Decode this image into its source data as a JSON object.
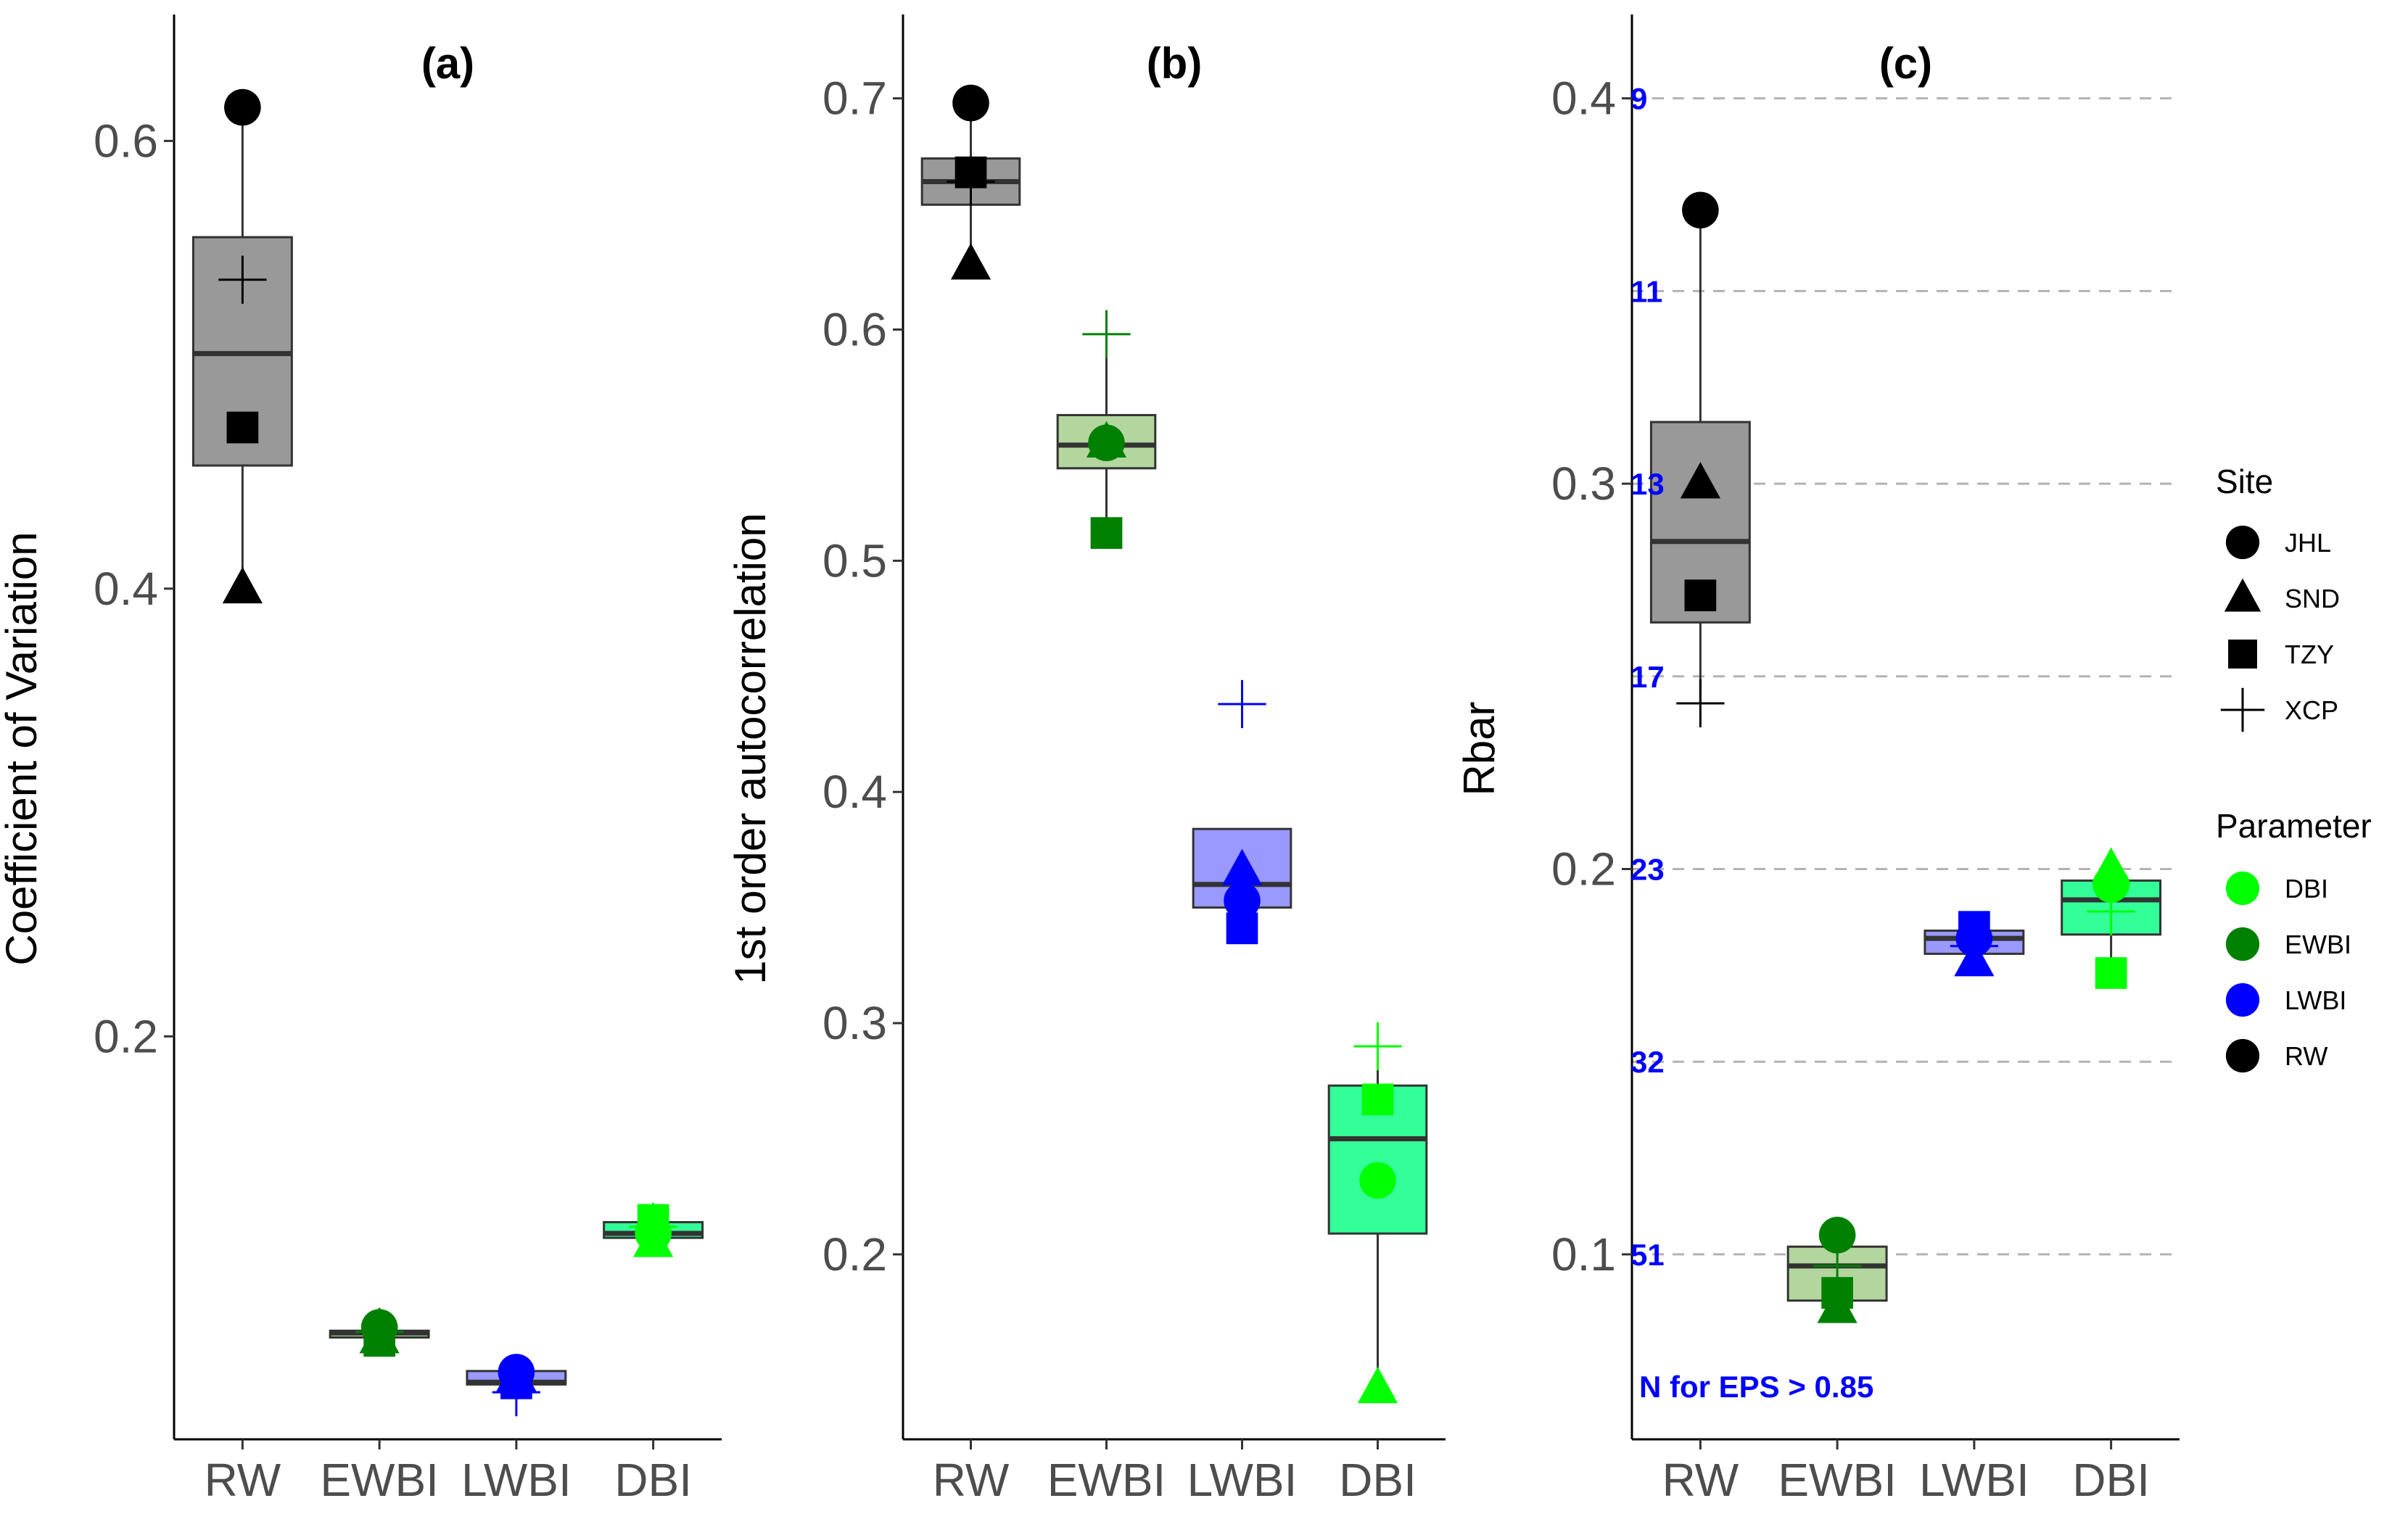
{
  "chart_data": [
    {
      "id": "a",
      "type": "box",
      "title": "(a)",
      "ylabel": "Coefficient of Variation",
      "xlabel": "",
      "ylim": [
        0.02,
        0.65
      ],
      "yticks": [
        0.2,
        0.4,
        0.6
      ],
      "ytick_labels": [
        "0.2",
        "0.4",
        "0.6"
      ],
      "categories": [
        "RW",
        "EWBI",
        "LWBI",
        "DBI"
      ],
      "boxes": [
        {
          "name": "RW",
          "fill": "#999999",
          "lower": 0.4,
          "q1": 0.455,
          "median": 0.505,
          "q3": 0.557,
          "upper": 0.615
        },
        {
          "name": "EWBI",
          "fill": "#b2d69e",
          "lower": 0.063,
          "q1": 0.0655,
          "median": 0.0675,
          "q3": 0.0685,
          "upper": 0.07
        },
        {
          "name": "LWBI",
          "fill": "#9999ff",
          "lower": 0.041,
          "q1": 0.0445,
          "median": 0.0455,
          "q3": 0.0505,
          "upper": 0.053
        },
        {
          "name": "DBI",
          "fill": "#33ff99",
          "lower": 0.108,
          "q1": 0.11,
          "median": 0.112,
          "q3": 0.117,
          "upper": 0.118
        }
      ],
      "points": [
        {
          "category": "RW",
          "site": "JHL",
          "value": 0.615
        },
        {
          "category": "RW",
          "site": "SND",
          "value": 0.4
        },
        {
          "category": "RW",
          "site": "TZY",
          "value": 0.472
        },
        {
          "category": "RW",
          "site": "XCP",
          "value": 0.538
        },
        {
          "category": "EWBI",
          "site": "JHL",
          "value": 0.07
        },
        {
          "category": "EWBI",
          "site": "SND",
          "value": 0.065
        },
        {
          "category": "EWBI",
          "site": "TZY",
          "value": 0.064
        },
        {
          "category": "EWBI",
          "site": "XCP",
          "value": 0.068
        },
        {
          "category": "LWBI",
          "site": "JHL",
          "value": 0.05
        },
        {
          "category": "LWBI",
          "site": "SND",
          "value": 0.048
        },
        {
          "category": "LWBI",
          "site": "TZY",
          "value": 0.045
        },
        {
          "category": "LWBI",
          "site": "XCP",
          "value": 0.041
        },
        {
          "category": "DBI",
          "site": "JHL",
          "value": 0.112
        },
        {
          "category": "DBI",
          "site": "SND",
          "value": 0.108
        },
        {
          "category": "DBI",
          "site": "TZY",
          "value": 0.118
        },
        {
          "category": "DBI",
          "site": "XCP",
          "value": 0.115
        }
      ]
    },
    {
      "id": "b",
      "type": "box",
      "title": "(b)",
      "ylabel": "1st order autocorrelation",
      "xlabel": "",
      "ylim": [
        0.12,
        0.73
      ],
      "yticks": [
        0.2,
        0.3,
        0.4,
        0.5,
        0.6,
        0.7
      ],
      "ytick_labels": [
        "0.2",
        "0.3",
        "0.4",
        "0.5",
        "0.6",
        "0.7"
      ],
      "categories": [
        "RW",
        "EWBI",
        "LWBI",
        "DBI"
      ],
      "boxes": [
        {
          "name": "RW",
          "fill": "#999999",
          "lower": 0.628,
          "q1": 0.654,
          "median": 0.664,
          "q3": 0.674,
          "upper": 0.698
        },
        {
          "name": "EWBI",
          "fill": "#b2d69e",
          "lower": 0.512,
          "q1": 0.54,
          "median": 0.55,
          "q3": 0.563,
          "upper": 0.598
        },
        {
          "name": "LWBI",
          "fill": "#9999ff",
          "lower": 0.35,
          "q1": 0.35,
          "median": 0.36,
          "q3": 0.384,
          "upper": 0.384
        },
        {
          "name": "DBI",
          "fill": "#33ff99",
          "lower": 0.142,
          "q1": 0.209,
          "median": 0.25,
          "q3": 0.273,
          "upper": 0.29
        }
      ],
      "points": [
        {
          "category": "RW",
          "site": "JHL",
          "value": 0.698
        },
        {
          "category": "RW",
          "site": "SND",
          "value": 0.628
        },
        {
          "category": "RW",
          "site": "TZY",
          "value": 0.668
        },
        {
          "category": "RW",
          "site": "XCP",
          "value": 0.664
        },
        {
          "category": "EWBI",
          "site": "JHL",
          "value": 0.551
        },
        {
          "category": "EWBI",
          "site": "SND",
          "value": 0.551
        },
        {
          "category": "EWBI",
          "site": "TZY",
          "value": 0.512
        },
        {
          "category": "EWBI",
          "site": "XCP",
          "value": 0.598
        },
        {
          "category": "LWBI",
          "site": "JHL",
          "value": 0.353
        },
        {
          "category": "LWBI",
          "site": "SND",
          "value": 0.366
        },
        {
          "category": "LWBI",
          "site": "TZY",
          "value": 0.341
        },
        {
          "category": "LWBI",
          "site": "XCP",
          "value": 0.438
        },
        {
          "category": "DBI",
          "site": "JHL",
          "value": 0.232
        },
        {
          "category": "DBI",
          "site": "SND",
          "value": 0.142
        },
        {
          "category": "DBI",
          "site": "TZY",
          "value": 0.267
        },
        {
          "category": "DBI",
          "site": "XCP",
          "value": 0.29
        }
      ]
    },
    {
      "id": "c",
      "type": "box",
      "title": "(c)",
      "ylabel": "Rbar",
      "xlabel": "",
      "ylim": [
        0.052,
        0.418
      ],
      "yticks": [
        0.1,
        0.2,
        0.3,
        0.4
      ],
      "ytick_labels": [
        "0.1",
        "0.2",
        "0.3",
        "0.4"
      ],
      "categories": [
        "RW",
        "EWBI",
        "LWBI",
        "DBI"
      ],
      "gridlines": [
        0.4,
        0.35,
        0.3,
        0.25,
        0.2,
        0.15,
        0.1
      ],
      "eps_n_labels": [
        {
          "value": 0.4,
          "label": "9"
        },
        {
          "value": 0.35,
          "label": "11"
        },
        {
          "value": 0.3,
          "label": "13"
        },
        {
          "value": 0.25,
          "label": "17"
        },
        {
          "value": 0.2,
          "label": "23"
        },
        {
          "value": 0.15,
          "label": "32"
        },
        {
          "value": 0.1,
          "label": "51"
        }
      ],
      "annotation": "N for EPS > 0.85",
      "boxes": [
        {
          "name": "RW",
          "fill": "#999999",
          "lower": 0.243,
          "q1": 0.264,
          "median": 0.285,
          "q3": 0.316,
          "upper": 0.371
        },
        {
          "name": "EWBI",
          "fill": "#b2d69e",
          "lower": 0.086,
          "q1": 0.088,
          "median": 0.097,
          "q3": 0.102,
          "upper": 0.105
        },
        {
          "name": "LWBI",
          "fill": "#9999ff",
          "lower": 0.176,
          "q1": 0.178,
          "median": 0.182,
          "q3": 0.184,
          "upper": 0.186
        },
        {
          "name": "DBI",
          "fill": "#33ff99",
          "lower": 0.173,
          "q1": 0.183,
          "median": 0.192,
          "q3": 0.197,
          "upper": 0.2
        }
      ],
      "points": [
        {
          "category": "RW",
          "site": "JHL",
          "value": 0.371
        },
        {
          "category": "RW",
          "site": "SND",
          "value": 0.3
        },
        {
          "category": "RW",
          "site": "TZY",
          "value": 0.271
        },
        {
          "category": "RW",
          "site": "XCP",
          "value": 0.243
        },
        {
          "category": "EWBI",
          "site": "JHL",
          "value": 0.105
        },
        {
          "category": "EWBI",
          "site": "SND",
          "value": 0.086
        },
        {
          "category": "EWBI",
          "site": "TZY",
          "value": 0.09
        },
        {
          "category": "EWBI",
          "site": "XCP",
          "value": 0.097
        },
        {
          "category": "LWBI",
          "site": "JHL",
          "value": 0.182
        },
        {
          "category": "LWBI",
          "site": "SND",
          "value": 0.176
        },
        {
          "category": "LWBI",
          "site": "TZY",
          "value": 0.185
        },
        {
          "category": "LWBI",
          "site": "XCP",
          "value": 0.18
        },
        {
          "category": "DBI",
          "site": "JHL",
          "value": 0.196
        },
        {
          "category": "DBI",
          "site": "SND",
          "value": 0.2
        },
        {
          "category": "DBI",
          "site": "TZY",
          "value": 0.173
        },
        {
          "category": "DBI",
          "site": "XCP",
          "value": 0.189
        }
      ]
    }
  ],
  "parameter_colors": {
    "RW": "#000000",
    "EWBI": "#008000",
    "LWBI": "#0000ff",
    "DBI": "#00ff00"
  },
  "legend": {
    "site_title": "Site",
    "sites": [
      {
        "label": "JHL",
        "shape": "circle"
      },
      {
        "label": "SND",
        "shape": "triangle"
      },
      {
        "label": "TZY",
        "shape": "square"
      },
      {
        "label": "XCP",
        "shape": "plus"
      }
    ],
    "parameter_title": "Parameter",
    "parameters": [
      {
        "label": "DBI",
        "color": "#00ff00"
      },
      {
        "label": "EWBI",
        "color": "#008000"
      },
      {
        "label": "LWBI",
        "color": "#0000ff"
      },
      {
        "label": "RW",
        "color": "#000000"
      }
    ]
  }
}
